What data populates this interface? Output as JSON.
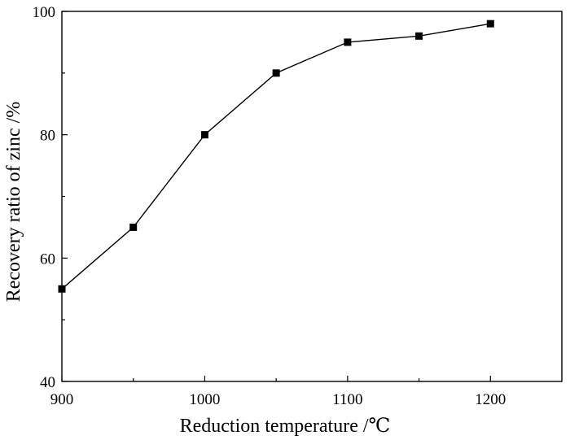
{
  "chart_data": {
    "type": "line",
    "title": "",
    "xlabel": "Reduction temperature /℃",
    "ylabel": "Recovery ratio of zinc /%",
    "xlim": [
      900,
      1250
    ],
    "ylim": [
      40,
      100
    ],
    "x_ticks": [
      900,
      1000,
      1100,
      1200
    ],
    "y_ticks": [
      40,
      60,
      80,
      100
    ],
    "grid": false,
    "legend": "none",
    "series": [
      {
        "marker": "square",
        "color": "#000000",
        "x": [
          900,
          950,
          1000,
          1050,
          1100,
          1150,
          1200
        ],
        "y": [
          55,
          65,
          80,
          90,
          95,
          96,
          98
        ]
      }
    ]
  }
}
